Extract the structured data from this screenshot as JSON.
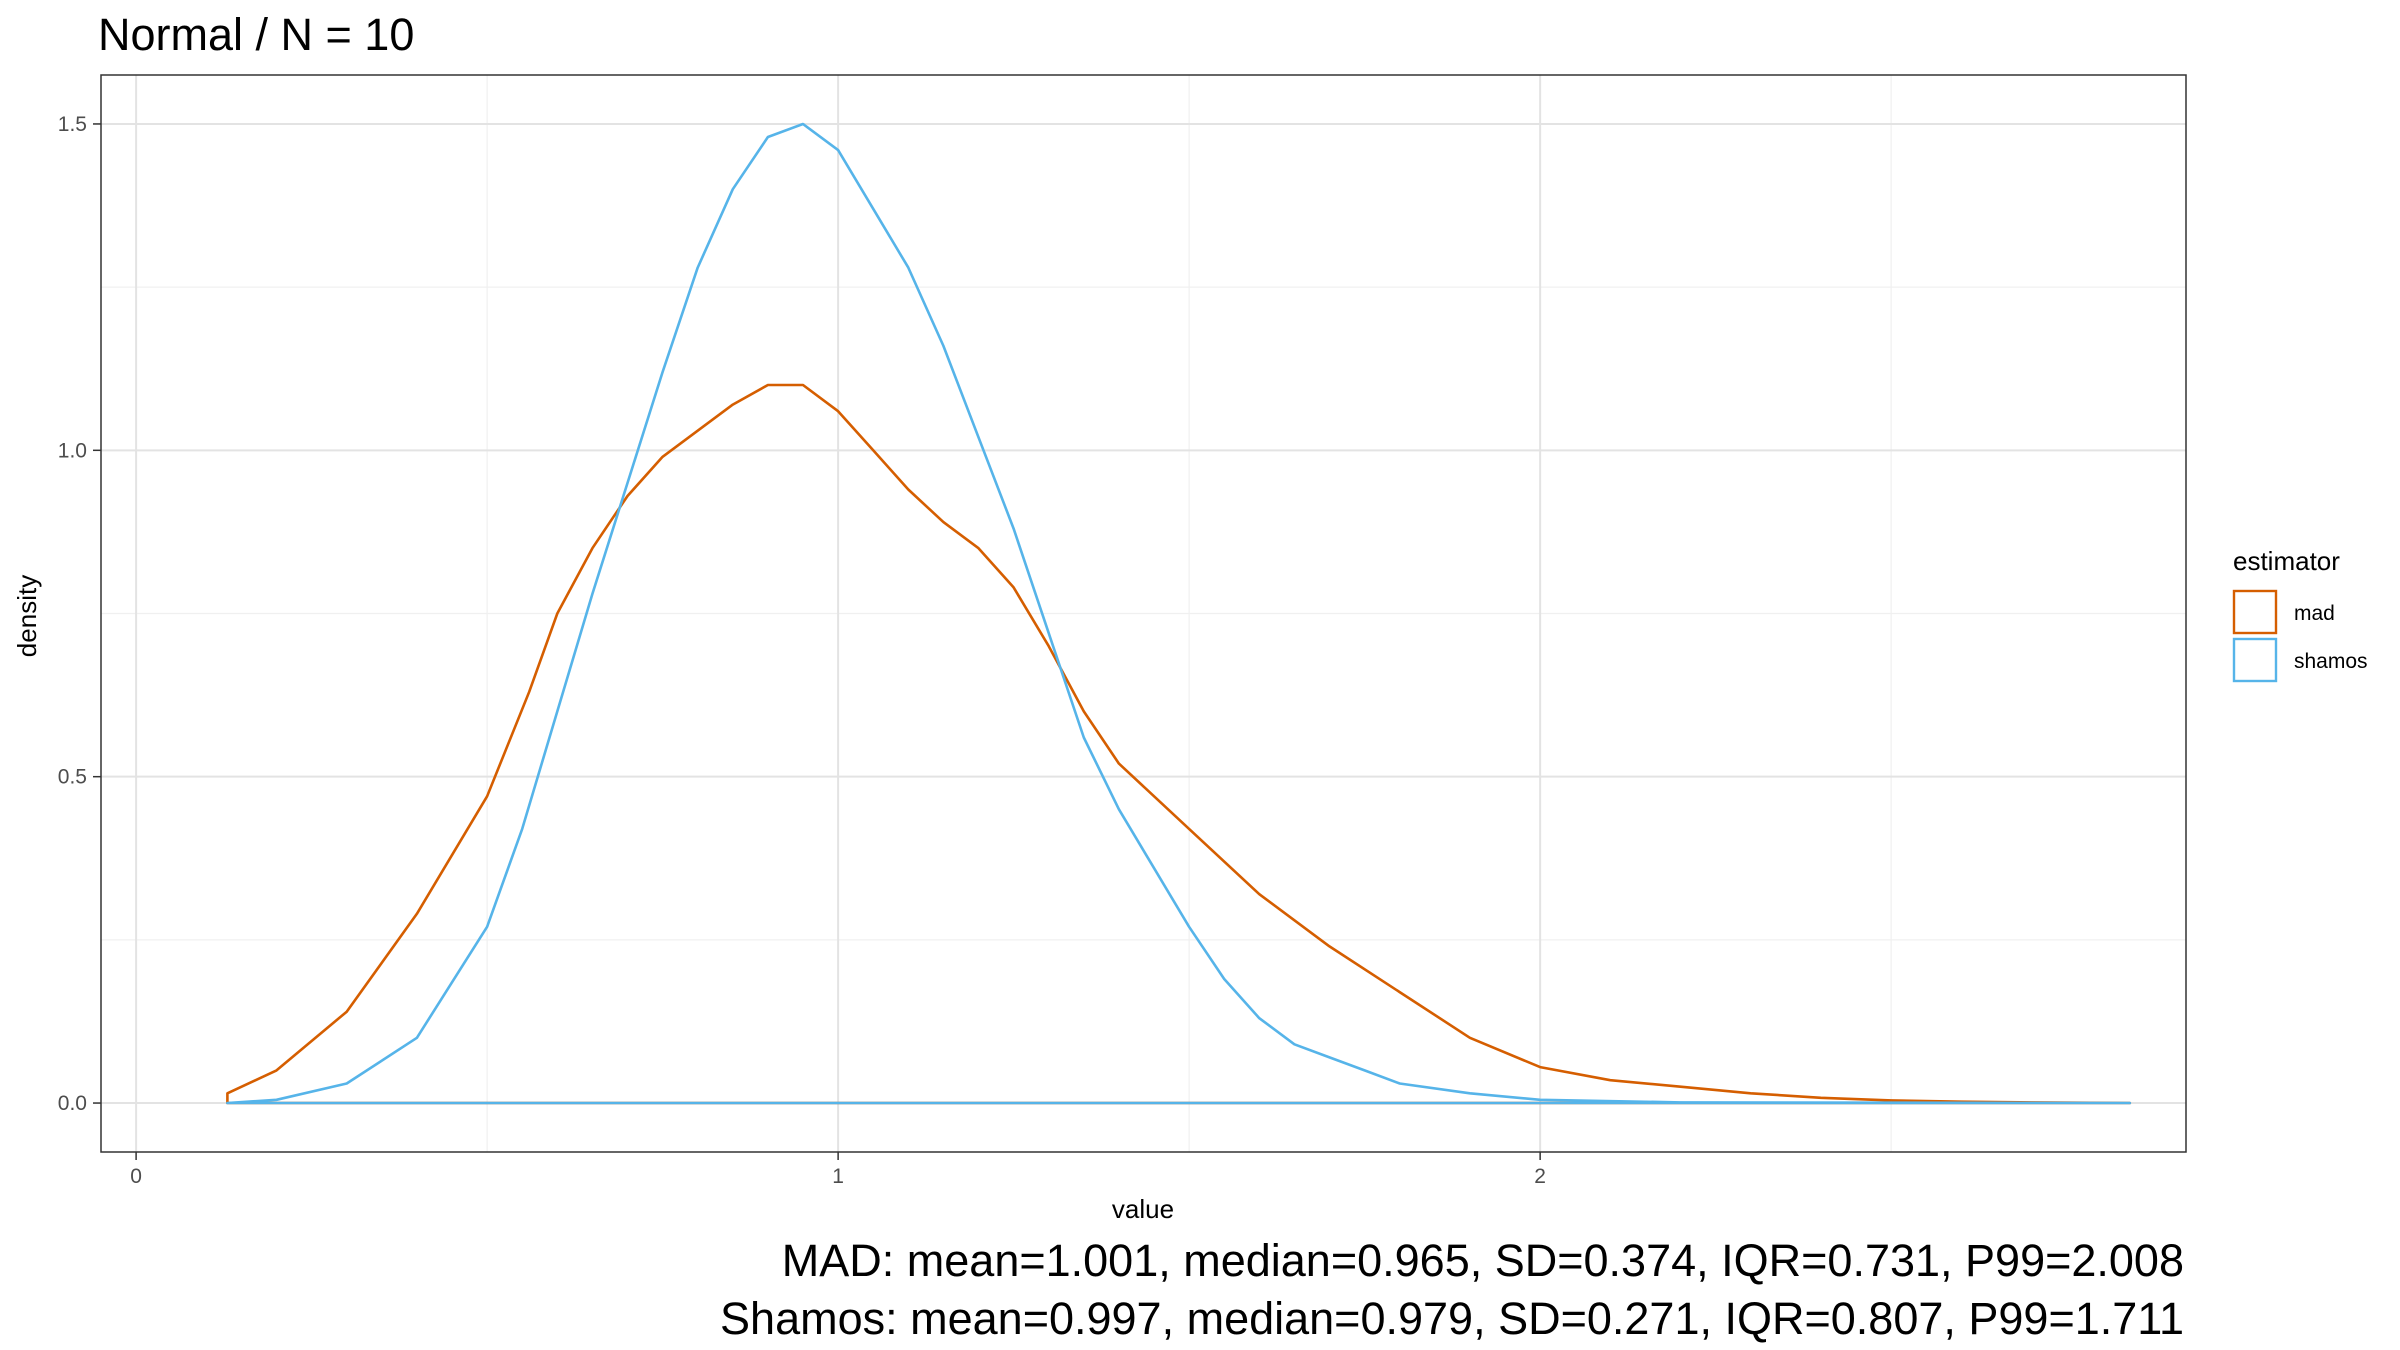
{
  "chart_data": {
    "type": "line",
    "title": "Normal / N = 10",
    "xlabel": "value",
    "ylabel": "density",
    "xlim": [
      -0.05,
      2.92
    ],
    "ylim": [
      -0.075,
      1.575
    ],
    "x_ticks": [
      0,
      1,
      2
    ],
    "x_tick_labels": [
      "0",
      "1",
      "2"
    ],
    "y_ticks": [
      0,
      0.5,
      1,
      1.5
    ],
    "y_tick_labels": [
      "0.0",
      "0.5",
      "1.0",
      "1.5"
    ],
    "grid": true,
    "legend": {
      "title": "estimator",
      "placement": "right"
    },
    "series": [
      {
        "name": "mad",
        "color": "#D55E00",
        "points": [
          [
            0.13,
            0.015
          ],
          [
            0.2,
            0.05
          ],
          [
            0.3,
            0.14
          ],
          [
            0.4,
            0.29
          ],
          [
            0.5,
            0.47
          ],
          [
            0.56,
            0.63
          ],
          [
            0.6,
            0.75
          ],
          [
            0.65,
            0.85
          ],
          [
            0.7,
            0.93
          ],
          [
            0.75,
            0.99
          ],
          [
            0.8,
            1.03
          ],
          [
            0.85,
            1.07
          ],
          [
            0.9,
            1.1
          ],
          [
            0.95,
            1.1
          ],
          [
            1.0,
            1.06
          ],
          [
            1.05,
            1.0
          ],
          [
            1.1,
            0.94
          ],
          [
            1.15,
            0.89
          ],
          [
            1.2,
            0.85
          ],
          [
            1.25,
            0.79
          ],
          [
            1.3,
            0.7
          ],
          [
            1.35,
            0.6
          ],
          [
            1.4,
            0.52
          ],
          [
            1.5,
            0.42
          ],
          [
            1.6,
            0.32
          ],
          [
            1.7,
            0.24
          ],
          [
            1.8,
            0.17
          ],
          [
            1.9,
            0.1
          ],
          [
            2.0,
            0.055
          ],
          [
            2.1,
            0.035
          ],
          [
            2.2,
            0.025
          ],
          [
            2.3,
            0.015
          ],
          [
            2.4,
            0.008
          ],
          [
            2.5,
            0.004
          ],
          [
            2.6,
            0.002
          ],
          [
            2.7,
            0.001
          ],
          [
            2.84,
            0.0
          ]
        ]
      },
      {
        "name": "shamos",
        "color": "#56B4E9",
        "points": [
          [
            0.13,
            0.0
          ],
          [
            0.2,
            0.005
          ],
          [
            0.3,
            0.03
          ],
          [
            0.4,
            0.1
          ],
          [
            0.5,
            0.27
          ],
          [
            0.55,
            0.42
          ],
          [
            0.6,
            0.6
          ],
          [
            0.65,
            0.78
          ],
          [
            0.7,
            0.95
          ],
          [
            0.75,
            1.12
          ],
          [
            0.8,
            1.28
          ],
          [
            0.85,
            1.4
          ],
          [
            0.9,
            1.48
          ],
          [
            0.95,
            1.5
          ],
          [
            1.0,
            1.46
          ],
          [
            1.05,
            1.37
          ],
          [
            1.1,
            1.28
          ],
          [
            1.15,
            1.16
          ],
          [
            1.2,
            1.02
          ],
          [
            1.25,
            0.88
          ],
          [
            1.3,
            0.72
          ],
          [
            1.35,
            0.56
          ],
          [
            1.4,
            0.45
          ],
          [
            1.45,
            0.36
          ],
          [
            1.5,
            0.27
          ],
          [
            1.55,
            0.19
          ],
          [
            1.6,
            0.13
          ],
          [
            1.65,
            0.09
          ],
          [
            1.7,
            0.07
          ],
          [
            1.75,
            0.05
          ],
          [
            1.8,
            0.03
          ],
          [
            1.9,
            0.015
          ],
          [
            2.0,
            0.005
          ],
          [
            2.2,
            0.001
          ],
          [
            2.84,
            0.0
          ]
        ]
      }
    ],
    "caption": [
      "MAD: mean=1.001, median=0.965, SD=0.374, IQR=0.731, P99=2.008",
      "Shamos: mean=0.997, median=0.979, SD=0.271, IQR=0.807, P99=1.711"
    ]
  }
}
